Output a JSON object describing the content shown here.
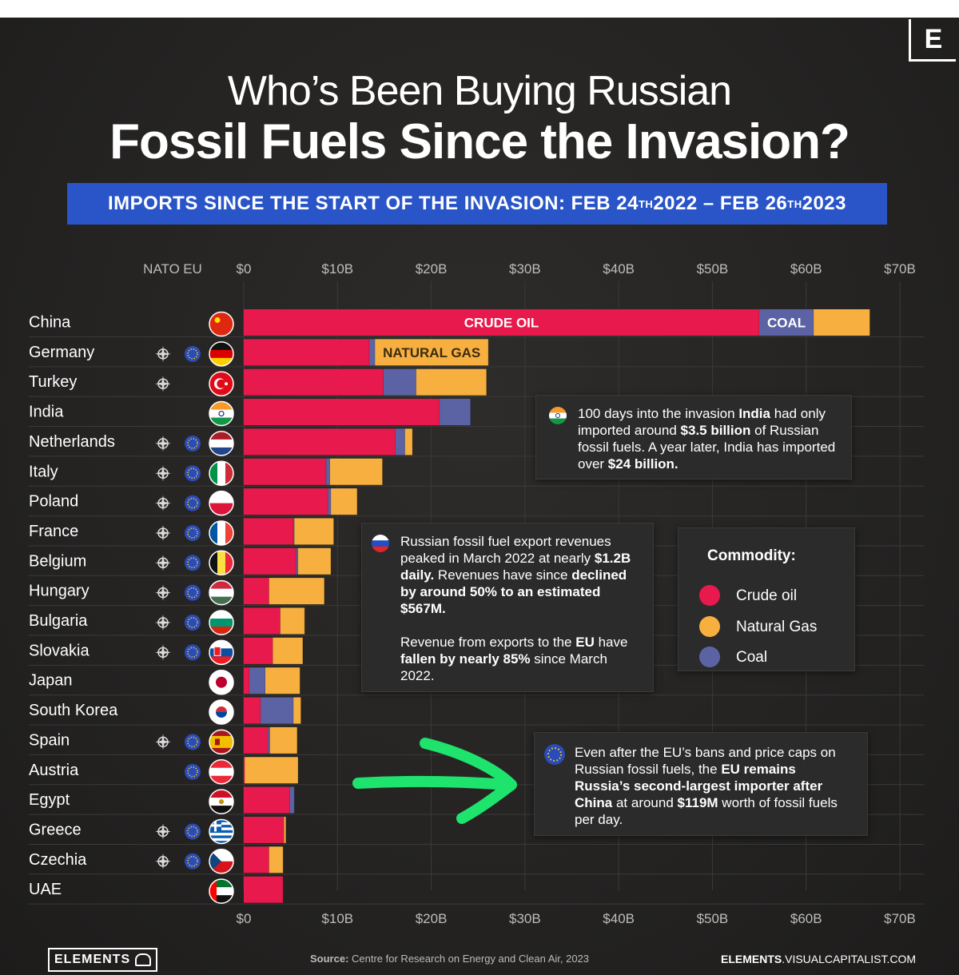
{
  "title_line1": "Who’s Been Buying Russian",
  "title_line2": "Fossil Fuels Since the Invasion?",
  "banner": {
    "prefix": "IMPORTS SINCE THE START OF THE INVASION:  FEB 24",
    "sup1": "TH",
    "middle": " 2022 – FEB 26",
    "sup2": "TH",
    "suffix": " 2023"
  },
  "brand_letter": "E",
  "colors": {
    "crude_oil": "#e8194c",
    "natural_gas": "#f7b040",
    "coal": "#5c63a4",
    "background": "#262524",
    "banner": "#2a55c8",
    "arrow": "#1ee36c"
  },
  "chart_data": {
    "type": "bar",
    "orientation": "horizontal",
    "stacked": true,
    "xlim": [
      0,
      70
    ],
    "x_ticks": [
      "$0",
      "$10B",
      "$20B",
      "$30B",
      "$40B",
      "$50B",
      "$60B",
      "$70B"
    ],
    "x_tick_values": [
      0,
      10,
      20,
      30,
      40,
      50,
      60,
      70
    ],
    "column_headers": {
      "nato": "NATO",
      "eu": "EU"
    },
    "categories": [
      "China",
      "Germany",
      "Turkey",
      "India",
      "Netherlands",
      "Italy",
      "Poland",
      "France",
      "Belgium",
      "Hungary",
      "Bulgaria",
      "Slovakia",
      "Japan",
      "South Korea",
      "Spain",
      "Austria",
      "Egypt",
      "Greece",
      "Czechia",
      "UAE"
    ],
    "nato": [
      false,
      true,
      true,
      false,
      true,
      true,
      true,
      true,
      true,
      true,
      true,
      true,
      false,
      false,
      true,
      false,
      false,
      true,
      true,
      false
    ],
    "eu": [
      false,
      true,
      false,
      false,
      true,
      true,
      true,
      true,
      true,
      true,
      true,
      true,
      false,
      false,
      true,
      true,
      false,
      true,
      true,
      false
    ],
    "series": [
      {
        "name": "Crude oil",
        "values": [
          55.0,
          13.4,
          14.9,
          20.9,
          16.2,
          8.8,
          9.0,
          5.3,
          5.6,
          2.7,
          3.9,
          3.1,
          0.6,
          1.8,
          2.6,
          0.1,
          4.9,
          4.3,
          2.7,
          4.2
        ]
      },
      {
        "name": "Coal",
        "values": [
          5.8,
          0.6,
          3.5,
          3.3,
          1.0,
          0.4,
          0.3,
          0.1,
          0.2,
          0.0,
          0.0,
          0.0,
          1.7,
          3.5,
          0.2,
          0.0,
          0.5,
          0.0,
          0.0,
          0.0
        ]
      },
      {
        "name": "Natural Gas",
        "values": [
          6.0,
          12.1,
          7.5,
          0.0,
          0.8,
          5.6,
          2.8,
          4.2,
          3.5,
          5.9,
          2.6,
          3.2,
          3.7,
          0.8,
          2.9,
          5.7,
          0.0,
          0.2,
          1.5,
          0.0
        ]
      }
    ],
    "bar_labels": [
      {
        "category": "China",
        "series": "Crude oil",
        "text": "CRUDE OIL"
      },
      {
        "category": "China",
        "series": "Coal",
        "text": "COAL"
      },
      {
        "category": "Germany",
        "series": "Natural Gas",
        "text": "NATURAL GAS"
      }
    ],
    "legend": {
      "title": "Commodity:",
      "items": [
        "Crude oil",
        "Natural Gas",
        "Coal"
      ]
    }
  },
  "callouts": {
    "india": {
      "t1": "100 days into the invasion ",
      "b1": "India",
      "t2": " had only imported around ",
      "b2": "$3.5 billion",
      "t3": " of Russian fossil fuels. A year later, India has imported over ",
      "b3": "$24 billion."
    },
    "russia": {
      "t1": "Russian fossil fuel export revenues peaked in March 2022 at nearly ",
      "b1": "$1.2B daily.",
      "t2": " Revenues have since ",
      "b2": "declined by around 50% to an estimated $567M.",
      "t3": "Revenue from exports to the ",
      "b3": "EU",
      "t4": " have ",
      "b4": "fallen by nearly 85%",
      "t5": " since March 2022."
    },
    "eu": {
      "t1": "Even after the EU’s bans and price caps on Russian fossil fuels, the ",
      "b1": "EU remains Russia’s second-largest importer after China",
      "t2": " at around ",
      "b2": "$119M",
      "t3": " worth of fossil fuels per day."
    }
  },
  "footer": {
    "logo": "ELEMENTS",
    "source_label": "Source:",
    "source_text": " Centre for Research on Energy and Clean Air, 2023",
    "url_bold": "ELEMENTS",
    "url_rest": ".VISUALCAPITALIST.COM"
  }
}
